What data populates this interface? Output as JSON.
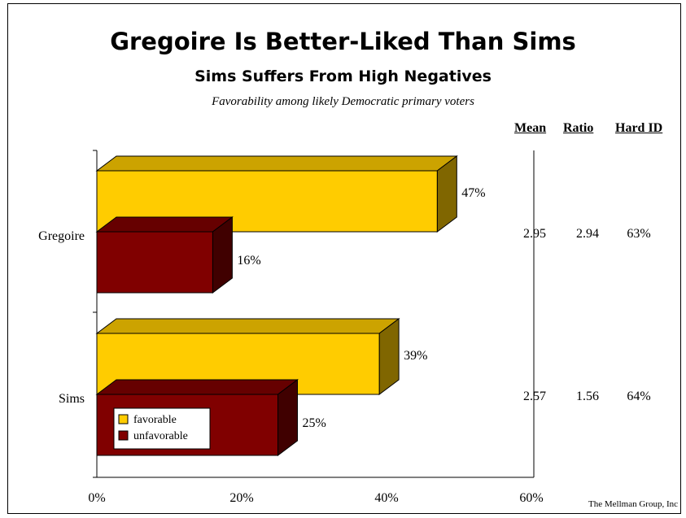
{
  "header": {
    "title": "Gregoire Is Better-Liked Than Sims",
    "subtitle": "Sims Suffers From High Negatives",
    "note": "Favorability among likely Democratic primary voters"
  },
  "table": {
    "columns": [
      "Mean",
      "Ratio",
      "Hard ID"
    ],
    "rows": [
      {
        "name": "Gregoire",
        "values": [
          "2.95",
          "2.94",
          "63%"
        ]
      },
      {
        "name": "Sims",
        "values": [
          "2.57",
          "1.56",
          "64%"
        ]
      }
    ]
  },
  "credit": "The Mellman Group, Inc",
  "chart_data": {
    "type": "bar",
    "orientation": "horizontal",
    "style": "3d",
    "title": "Gregoire Is Better-Liked Than Sims",
    "subtitle": "Sims Suffers From High Negatives",
    "categories": [
      "Gregoire",
      "Sims"
    ],
    "series": [
      {
        "name": "favorable",
        "values": [
          47,
          39
        ],
        "labels": [
          "47%",
          "39%"
        ],
        "color": "#FFCC00",
        "side_color": "#806600",
        "top_color": "#CCA300"
      },
      {
        "name": "unfavorable",
        "values": [
          16,
          25
        ],
        "labels": [
          "16%",
          "25%"
        ],
        "color": "#800000",
        "side_color": "#400000",
        "top_color": "#660000"
      }
    ],
    "xlim": [
      0,
      60
    ],
    "xticks": [
      0,
      20,
      40,
      60
    ],
    "xtick_labels": [
      "0%",
      "20%",
      "40%",
      "60%"
    ],
    "legend": {
      "position": "bottom-left",
      "entries": [
        "favorable",
        "unfavorable"
      ]
    },
    "grid": false
  }
}
